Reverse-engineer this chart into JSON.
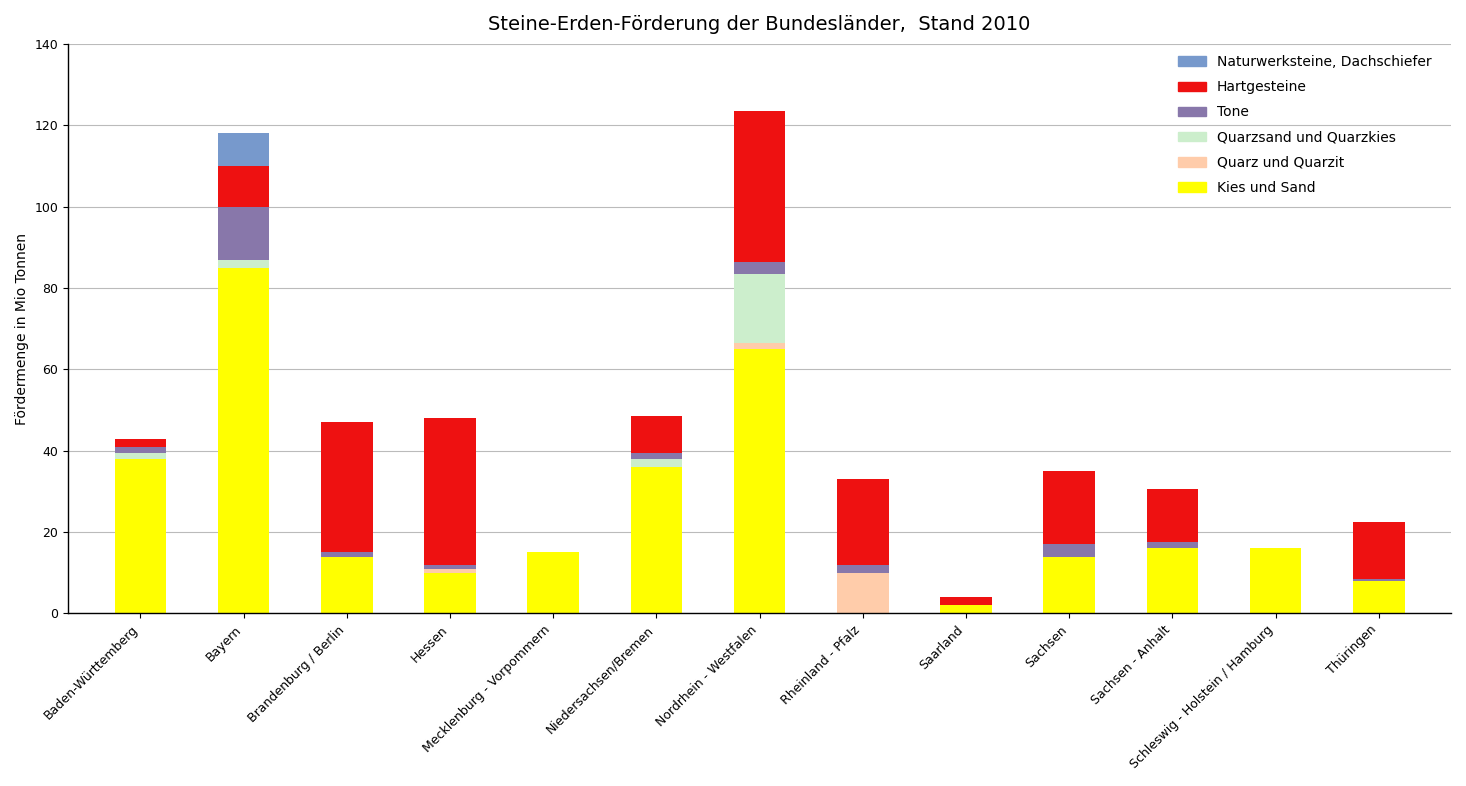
{
  "title": "Steine-Erden-Förderung der Bundesländer,  Stand 2010",
  "ylabel": "Fördermenge in Mio Tonnen",
  "categories": [
    "Baden-Württemberg",
    "Bayern",
    "Brandenburg / Berlin",
    "Hessen",
    "Mecklenburg - Vorpommern",
    "Niedersachsen/Bremen",
    "Nordrhein - Westfalen",
    "Rheinland - Pfalz",
    "Saarland",
    "Sachsen",
    "Sachsen - Anhalt",
    "Schleswig - Holstein / Hamburg",
    "Thüringen"
  ],
  "series": {
    "Kies und Sand": [
      38,
      85,
      14,
      10,
      15,
      36,
      65,
      0,
      2,
      14,
      16,
      16,
      8
    ],
    "Quarz und Quarzit": [
      0,
      0,
      0,
      1,
      0,
      0,
      1.5,
      10,
      0,
      0,
      0,
      0,
      0
    ],
    "Quarzsand und Quarzkies": [
      1.5,
      2,
      0,
      0,
      0,
      2,
      17,
      0,
      0,
      0,
      0,
      0,
      0
    ],
    "Tone": [
      1.5,
      13,
      1,
      1,
      0,
      1.5,
      3,
      2,
      0,
      3,
      1.5,
      0,
      0.5
    ],
    "Hartgesteine": [
      2,
      10,
      32,
      36,
      0,
      9,
      37,
      21,
      2,
      18,
      13,
      0,
      14
    ],
    "Naturwerksteine, Dachschiefer": [
      0,
      8,
      0,
      0,
      0,
      0,
      0,
      0,
      0,
      0,
      0,
      0,
      0
    ]
  },
  "colors": {
    "Kies und Sand": "#FFFF00",
    "Quarz und Quarzit": "#FFCCAA",
    "Quarzsand und Quarzkies": "#CCEECC",
    "Tone": "#8877AA",
    "Hartgesteine": "#EE1111",
    "Naturwerksteine, Dachschiefer": "#7799CC"
  },
  "ylim": [
    0,
    140
  ],
  "yticks": [
    0,
    20,
    40,
    60,
    80,
    100,
    120,
    140
  ],
  "background_color": "#FFFFFF",
  "grid_color": "#BBBBBB",
  "bar_width": 0.5,
  "title_fontsize": 14,
  "label_fontsize": 10,
  "tick_fontsize": 9,
  "legend_fontsize": 10
}
